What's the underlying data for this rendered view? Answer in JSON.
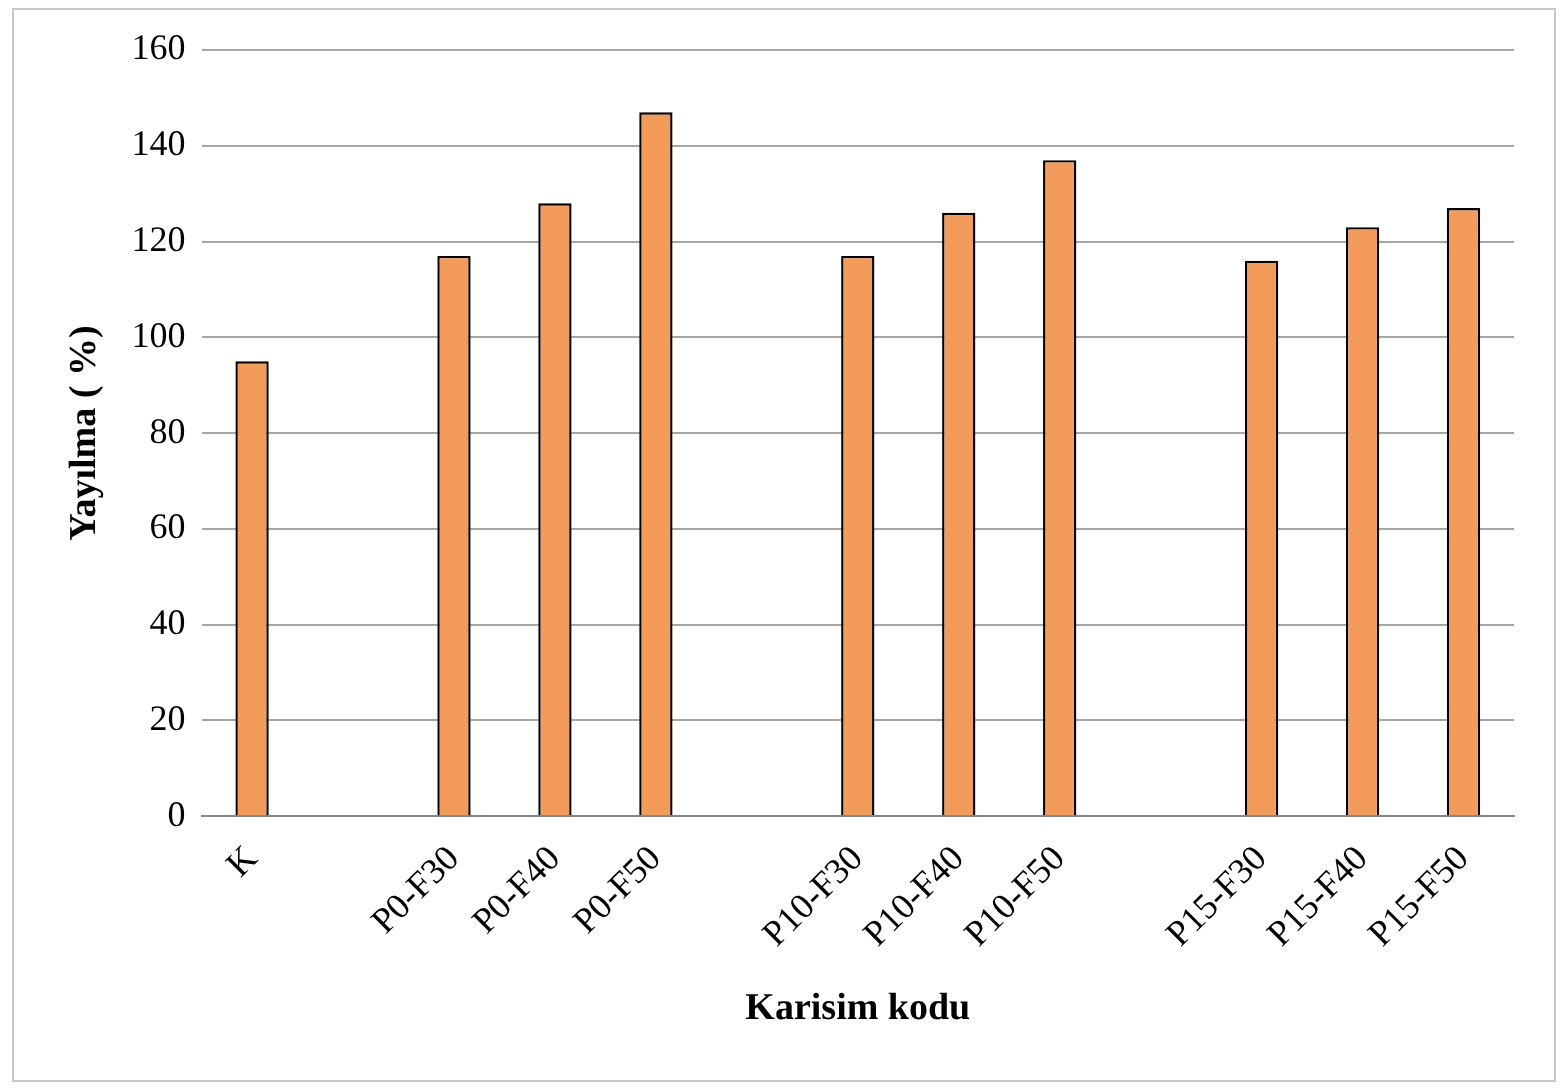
{
  "chart_data": {
    "type": "bar",
    "xlabel": "Karisim kodu",
    "ylabel": "Yayılma ( %)",
    "categories": [
      "K",
      null,
      "P0-F30",
      "P0-F40",
      "P0-F50",
      null,
      "P10-F30",
      "P10-F40",
      "P10-F50",
      null,
      "P15-F30",
      "P15-F40",
      "P15-F50"
    ],
    "values": [
      95,
      null,
      117,
      128,
      147,
      null,
      117,
      126,
      137,
      null,
      116,
      123,
      127
    ],
    "color": "#f39c5a",
    "ylim": [
      0,
      160
    ],
    "yticks": [
      0,
      20,
      40,
      60,
      80,
      100,
      120,
      140,
      160
    ],
    "grid": "y",
    "legend": false
  }
}
